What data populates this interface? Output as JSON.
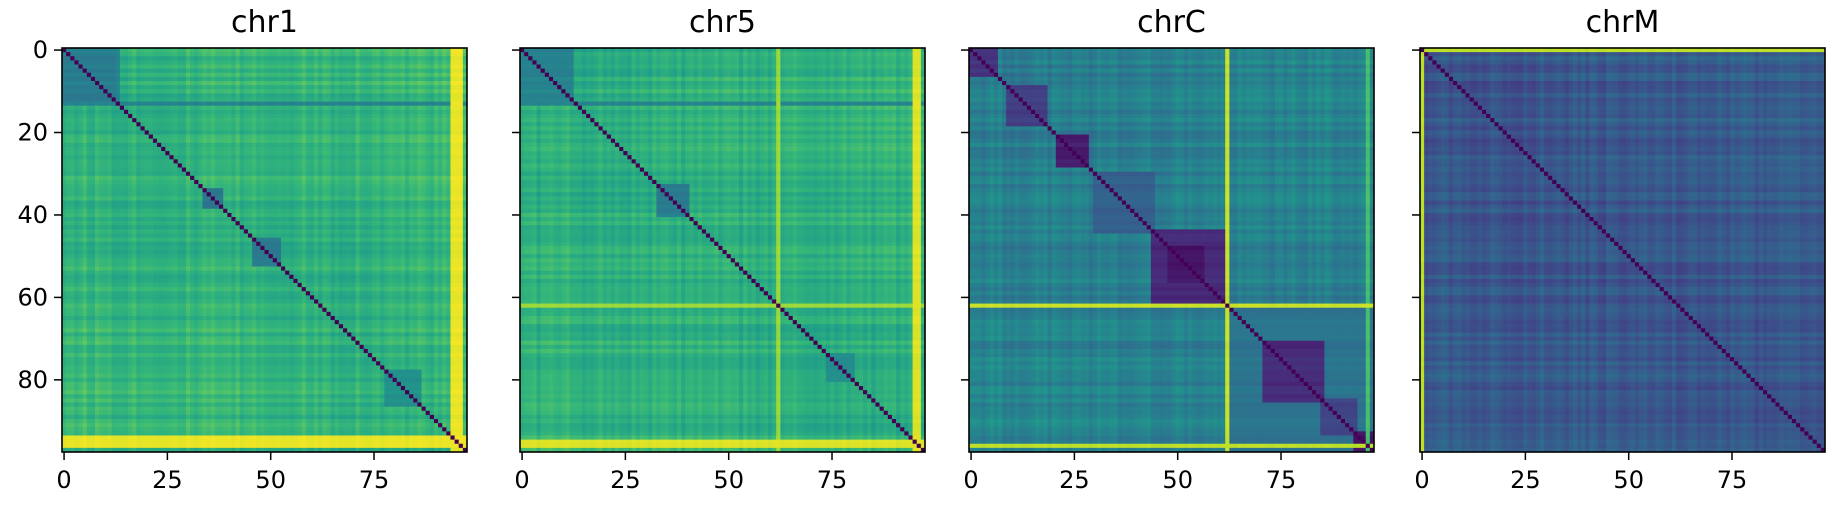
{
  "chart_data": [
    {
      "type": "heatmap",
      "title": "chr1",
      "size": 98,
      "xlim": [
        0,
        98
      ],
      "ylim": [
        98,
        0
      ],
      "x_ticks": [
        0,
        25,
        50,
        75
      ],
      "x_tick_labels": [
        "0",
        "25",
        "50",
        "75"
      ],
      "y_ticks": [
        0,
        20,
        40,
        60,
        80
      ],
      "y_tick_labels": [
        "0",
        "20",
        "40",
        "60",
        "80"
      ],
      "colormap": "viridis",
      "diagonal_value": 0,
      "background_level": 0.68,
      "bands": [
        {
          "kind": "row",
          "index": 13,
          "level": 0.45
        },
        {
          "kind": "col",
          "index": 13,
          "level": 0.45
        },
        {
          "kind": "row",
          "index": 94,
          "level": 0.97
        },
        {
          "kind": "row",
          "index": 95,
          "level": 0.97
        },
        {
          "kind": "row",
          "index": 96,
          "level": 0.97
        },
        {
          "kind": "col",
          "index": 94,
          "level": 0.97
        },
        {
          "kind": "col",
          "index": 95,
          "level": 0.97
        },
        {
          "kind": "col",
          "index": 96,
          "level": 0.97
        }
      ],
      "blocks": [
        {
          "start": 0,
          "end": 13,
          "level": 0.42
        },
        {
          "start": 34,
          "end": 38,
          "level": 0.4
        },
        {
          "start": 46,
          "end": 52,
          "level": 0.42
        },
        {
          "start": 78,
          "end": 86,
          "level": 0.5
        }
      ]
    },
    {
      "type": "heatmap",
      "title": "chr5",
      "size": 98,
      "xlim": [
        0,
        98
      ],
      "ylim": [
        98,
        0
      ],
      "x_ticks": [
        0,
        25,
        50,
        75
      ],
      "x_tick_labels": [
        "0",
        "25",
        "50",
        "75"
      ],
      "y_ticks": [
        0,
        20,
        40,
        60,
        80
      ],
      "y_tick_labels": [
        "",
        "",
        "",
        "",
        ""
      ],
      "colormap": "viridis",
      "diagonal_value": 0,
      "background_level": 0.66,
      "bands": [
        {
          "kind": "row",
          "index": 13,
          "level": 0.45
        },
        {
          "kind": "col",
          "index": 13,
          "level": 0.45
        },
        {
          "kind": "row",
          "index": 62,
          "level": 0.85
        },
        {
          "kind": "col",
          "index": 62,
          "level": 0.85
        },
        {
          "kind": "row",
          "index": 95,
          "level": 0.95
        },
        {
          "kind": "row",
          "index": 96,
          "level": 0.95
        },
        {
          "kind": "col",
          "index": 95,
          "level": 0.95
        },
        {
          "kind": "col",
          "index": 96,
          "level": 0.95
        }
      ],
      "blocks": [
        {
          "start": 0,
          "end": 12,
          "level": 0.45
        },
        {
          "start": 33,
          "end": 40,
          "level": 0.42
        },
        {
          "start": 74,
          "end": 80,
          "level": 0.5
        }
      ]
    },
    {
      "type": "heatmap",
      "title": "chrC",
      "size": 98,
      "xlim": [
        0,
        98
      ],
      "ylim": [
        98,
        0
      ],
      "x_ticks": [
        0,
        25,
        50,
        75
      ],
      "x_tick_labels": [
        "0",
        "25",
        "50",
        "75"
      ],
      "y_ticks": [
        0,
        20,
        40,
        60,
        80
      ],
      "y_tick_labels": [
        "",
        "",
        "",
        "",
        ""
      ],
      "colormap": "viridis",
      "diagonal_value": 0,
      "background_level": 0.46,
      "bands": [
        {
          "kind": "row",
          "index": 62,
          "level": 0.92
        },
        {
          "kind": "col",
          "index": 62,
          "level": 0.92
        },
        {
          "kind": "row",
          "index": 96,
          "level": 0.9
        },
        {
          "kind": "col",
          "index": 96,
          "level": 0.7
        }
      ],
      "blocks": [
        {
          "start": 0,
          "end": 6,
          "level": 0.15
        },
        {
          "start": 9,
          "end": 18,
          "level": 0.18
        },
        {
          "start": 21,
          "end": 28,
          "level": 0.08
        },
        {
          "start": 30,
          "end": 44,
          "level": 0.3
        },
        {
          "start": 44,
          "end": 62,
          "level": 0.12
        },
        {
          "start": 48,
          "end": 56,
          "level": 0.06
        },
        {
          "start": 62,
          "end": 97,
          "level": 0.38
        },
        {
          "start": 71,
          "end": 85,
          "level": 0.12
        },
        {
          "start": 85,
          "end": 93,
          "level": 0.2
        },
        {
          "start": 93,
          "end": 97,
          "level": 0.06
        }
      ]
    },
    {
      "type": "heatmap",
      "title": "chrM",
      "size": 98,
      "xlim": [
        0,
        98
      ],
      "ylim": [
        98,
        0
      ],
      "x_ticks": [
        0,
        25,
        50,
        75
      ],
      "x_tick_labels": [
        "0",
        "25",
        "50",
        "75"
      ],
      "y_ticks": [
        0,
        20,
        40,
        60,
        80
      ],
      "y_tick_labels": [
        "",
        "",
        "",
        "",
        ""
      ],
      "colormap": "viridis",
      "diagonal_value": 0,
      "background_level": 0.3,
      "bands": [
        {
          "kind": "col",
          "index": 0,
          "level": 0.9
        },
        {
          "kind": "row",
          "index": 0,
          "level": 0.9
        }
      ],
      "blocks": []
    }
  ]
}
